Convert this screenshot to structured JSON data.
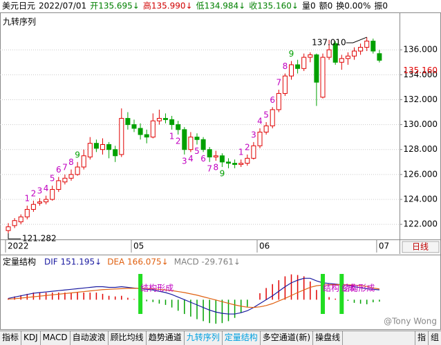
{
  "header": [
    {
      "text": "美元日元",
      "color": "#000000"
    },
    {
      "text": "2022/07/01",
      "color": "#000000"
    },
    {
      "text": "开135.695↓",
      "color": "#008000"
    },
    {
      "text": "高135.990↓",
      "color": "#d00000"
    },
    {
      "text": "低134.984↓",
      "color": "#008000"
    },
    {
      "text": "收135.160↓",
      "color": "#008000"
    },
    {
      "text": "量0",
      "color": "#000000"
    },
    {
      "text": "额0",
      "color": "#000000"
    },
    {
      "text": "换0.00%",
      "color": "#000000"
    },
    {
      "text": "振0",
      "color": "#000000"
    }
  ],
  "chart_data": {
    "type": "candlestick",
    "title": "九转序列",
    "up_color": "#e00000",
    "down_color": "#00a000",
    "count_color": "#c000c0",
    "grid": true,
    "ylim": [
      120.9,
      139.0
    ],
    "yticks": [
      {
        "value": 122,
        "label": "122.000"
      },
      {
        "value": 124,
        "label": "124.000"
      },
      {
        "value": 126,
        "label": "126.000"
      },
      {
        "value": 128,
        "label": "128.000"
      },
      {
        "value": 130,
        "label": "130.000"
      },
      {
        "value": 132,
        "label": "132.000"
      },
      {
        "value": 134,
        "label": "134.000"
      },
      {
        "value": 136,
        "label": "136.000"
      }
    ],
    "last_label": "135.160",
    "high_label": "137.010",
    "low_label": "121.282",
    "period": "日线",
    "x": [
      "2022",
      null,
      null,
      null,
      null,
      null,
      null,
      null,
      null,
      null,
      null,
      null,
      null,
      null,
      null,
      null,
      null,
      null,
      null,
      null,
      "05",
      null,
      null,
      null,
      null,
      null,
      null,
      null,
      null,
      null,
      null,
      null,
      null,
      null,
      null,
      null,
      null,
      null,
      null,
      null,
      "06",
      null,
      null,
      null,
      null,
      null,
      null,
      null,
      null,
      null,
      null,
      null,
      null,
      null,
      null,
      null,
      null,
      null,
      null,
      "07"
    ],
    "candles": [
      {
        "o": 121.5,
        "h": 122.1,
        "l": 121.282,
        "c": 121.8
      },
      {
        "o": 121.9,
        "h": 122.5,
        "l": 121.7,
        "c": 122.3
      },
      {
        "o": 122.2,
        "h": 122.8,
        "l": 122.0,
        "c": 122.6
      },
      {
        "o": 122.6,
        "h": 123.5,
        "l": 122.4,
        "c": 123.2,
        "n": "1",
        "at": "high"
      },
      {
        "o": 123.2,
        "h": 123.9,
        "l": 123.0,
        "c": 123.6,
        "n": "2",
        "at": "high"
      },
      {
        "o": 123.7,
        "h": 124.1,
        "l": 123.5,
        "c": 123.8,
        "n": "3",
        "at": "high"
      },
      {
        "o": 123.8,
        "h": 124.3,
        "l": 123.6,
        "c": 124.0,
        "n": "4",
        "at": "high"
      },
      {
        "o": 124.0,
        "h": 125.1,
        "l": 123.9,
        "c": 124.8,
        "n": "5",
        "at": "high"
      },
      {
        "o": 124.8,
        "h": 125.8,
        "l": 124.6,
        "c": 125.5,
        "n": "6",
        "at": "high"
      },
      {
        "o": 125.4,
        "h": 126.0,
        "l": 125.2,
        "c": 125.7,
        "n": "7",
        "at": "high"
      },
      {
        "o": 125.7,
        "h": 126.4,
        "l": 125.5,
        "c": 126.0,
        "n": "8",
        "at": "high"
      },
      {
        "o": 126.0,
        "h": 127.0,
        "l": 125.9,
        "c": 126.6,
        "n": "9",
        "at": "high",
        "nc": "#00a000"
      },
      {
        "o": 126.6,
        "h": 128.0,
        "l": 126.4,
        "c": 127.5
      },
      {
        "o": 127.4,
        "h": 129.0,
        "l": 127.2,
        "c": 128.5
      },
      {
        "o": 128.5,
        "h": 128.8,
        "l": 127.8,
        "c": 128.1
      },
      {
        "o": 128.0,
        "h": 128.9,
        "l": 127.6,
        "c": 128.4
      },
      {
        "o": 128.4,
        "h": 128.6,
        "l": 127.3,
        "c": 128.0
      },
      {
        "o": 128.0,
        "h": 128.3,
        "l": 127.0,
        "c": 127.5
      },
      {
        "o": 127.6,
        "h": 131.3,
        "l": 127.4,
        "c": 130.5
      },
      {
        "o": 130.5,
        "h": 131.0,
        "l": 129.6,
        "c": 130.0
      },
      {
        "o": 130.0,
        "h": 130.4,
        "l": 129.4,
        "c": 129.7
      },
      {
        "o": 129.7,
        "h": 130.1,
        "l": 128.8,
        "c": 129.2,
        "s": "结构形成"
      },
      {
        "o": 129.2,
        "h": 129.6,
        "l": 128.5,
        "c": 129.0
      },
      {
        "o": 129.0,
        "h": 130.9,
        "l": 128.9,
        "c": 130.3
      },
      {
        "o": 130.3,
        "h": 131.2,
        "l": 130.0,
        "c": 130.5
      },
      {
        "o": 130.5,
        "h": 130.9,
        "l": 130.1,
        "c": 130.4
      },
      {
        "o": 130.4,
        "h": 130.7,
        "l": 129.6,
        "c": 130.0,
        "n": "1",
        "at": "low"
      },
      {
        "o": 130.0,
        "h": 130.3,
        "l": 129.2,
        "c": 129.6,
        "n": "2",
        "at": "low"
      },
      {
        "o": 129.6,
        "h": 129.8,
        "l": 127.6,
        "c": 128.0,
        "n": "3",
        "at": "low"
      },
      {
        "o": 128.0,
        "h": 129.4,
        "l": 127.8,
        "c": 129.0,
        "n": "4",
        "at": "low"
      },
      {
        "o": 129.0,
        "h": 129.3,
        "l": 128.4,
        "c": 128.8,
        "n": "5",
        "at": "low"
      },
      {
        "o": 128.8,
        "h": 129.0,
        "l": 127.8,
        "c": 128.0,
        "n": "6",
        "at": "low"
      },
      {
        "o": 128.0,
        "h": 128.2,
        "l": 127.0,
        "c": 127.4,
        "n": "7",
        "at": "low"
      },
      {
        "o": 127.4,
        "h": 127.9,
        "l": 127.1,
        "c": 127.5,
        "n": "8",
        "at": "low"
      },
      {
        "o": 127.5,
        "h": 127.7,
        "l": 126.6,
        "c": 127.0,
        "n": "9",
        "at": "low",
        "nc": "#00a000"
      },
      {
        "o": 127.0,
        "h": 127.3,
        "l": 126.5,
        "c": 126.9
      },
      {
        "o": 126.9,
        "h": 127.2,
        "l": 126.5,
        "c": 126.8
      },
      {
        "o": 126.8,
        "h": 127.2,
        "l": 126.6,
        "c": 126.9,
        "n": "1",
        "at": "high"
      },
      {
        "o": 126.9,
        "h": 127.6,
        "l": 126.7,
        "c": 127.3,
        "n": "2",
        "at": "high"
      },
      {
        "o": 127.3,
        "h": 128.6,
        "l": 127.2,
        "c": 128.3,
        "n": "3",
        "at": "high"
      },
      {
        "o": 128.3,
        "h": 129.7,
        "l": 128.1,
        "c": 129.4,
        "n": "4",
        "at": "high"
      },
      {
        "o": 129.4,
        "h": 130.2,
        "l": 129.2,
        "c": 129.9,
        "n": "5",
        "at": "high"
      },
      {
        "o": 129.9,
        "h": 131.4,
        "l": 129.7,
        "c": 131.2,
        "n": "6",
        "at": "high"
      },
      {
        "o": 131.2,
        "h": 132.8,
        "l": 131.0,
        "c": 132.5,
        "n": "7",
        "at": "high"
      },
      {
        "o": 132.5,
        "h": 134.1,
        "l": 132.3,
        "c": 133.9,
        "n": "8",
        "at": "high"
      },
      {
        "o": 133.9,
        "h": 135.1,
        "l": 133.6,
        "c": 134.8,
        "n": "9",
        "at": "high",
        "nc": "#00a000"
      },
      {
        "o": 134.8,
        "h": 135.2,
        "l": 134.1,
        "c": 134.5
      },
      {
        "o": 134.5,
        "h": 135.7,
        "l": 134.3,
        "c": 135.4
      },
      {
        "o": 135.4,
        "h": 135.8,
        "l": 135.0,
        "c": 135.6
      },
      {
        "o": 135.6,
        "h": 135.7,
        "l": 131.5,
        "c": 133.4
      },
      {
        "o": 132.2,
        "h": 135.7,
        "l": 132.1,
        "c": 135.4,
        "s": "结构形成"
      },
      {
        "o": 135.4,
        "h": 136.8,
        "l": 135.2,
        "c": 136.0
      },
      {
        "o": 136.5,
        "h": 136.7,
        "l": 134.8,
        "c": 135.0
      },
      {
        "o": 135.0,
        "h": 135.6,
        "l": 134.4,
        "c": 135.3,
        "s": "结构形成"
      },
      {
        "o": 135.3,
        "h": 135.8,
        "l": 134.8,
        "c": 135.5
      },
      {
        "o": 135.5,
        "h": 136.2,
        "l": 135.2,
        "c": 135.9
      },
      {
        "o": 135.9,
        "h": 136.5,
        "l": 135.6,
        "c": 136.2
      },
      {
        "o": 136.2,
        "h": 137.01,
        "l": 135.9,
        "c": 136.7
      },
      {
        "o": 136.7,
        "h": 136.9,
        "l": 135.7,
        "c": 135.9
      },
      {
        "o": 135.695,
        "h": 135.99,
        "l": 134.984,
        "c": 135.16
      }
    ]
  },
  "indicator": {
    "title": "定量结构",
    "mlim": [
      -400,
      450
    ],
    "series": [
      {
        "name": "DIF 151.195↓",
        "color": "#1a1aa0",
        "values": [
          20,
          40,
          60,
          80,
          100,
          110,
          120,
          130,
          140,
          150,
          160,
          170,
          180,
          190,
          200,
          200,
          190,
          190,
          200,
          190,
          180,
          170,
          160,
          150,
          130,
          110,
          80,
          40,
          0,
          -40,
          -80,
          -120,
          -160,
          -190,
          -210,
          -220,
          -220,
          -200,
          -170,
          -120,
          -60,
          0,
          60,
          130,
          200,
          260,
          300,
          330,
          330,
          290,
          260,
          250,
          240,
          230,
          220,
          200,
          185,
          170,
          160,
          151.195
        ]
      },
      {
        "name": "DEA 166.075↓",
        "color": "#e06010",
        "values": [
          10,
          15,
          25,
          35,
          45,
          55,
          65,
          75,
          85,
          95,
          105,
          115,
          125,
          135,
          145,
          155,
          160,
          165,
          170,
          175,
          175,
          175,
          172,
          168,
          160,
          150,
          140,
          125,
          110,
          90,
          70,
          45,
          20,
          -5,
          -30,
          -55,
          -80,
          -100,
          -115,
          -120,
          -110,
          -90,
          -60,
          -20,
          20,
          65,
          110,
          150,
          190,
          215,
          225,
          230,
          232,
          231,
          229,
          224,
          216,
          205,
          180,
          166.075
        ]
      }
    ],
    "macd_name": "MACD -29.761↓",
    "macd_color": "#808080",
    "pos_color": "#e00000",
    "neg_color": "#00a000",
    "macd": [
      20,
      50,
      70,
      90,
      110,
      110,
      110,
      110,
      110,
      110,
      110,
      110,
      110,
      110,
      110,
      90,
      60,
      50,
      60,
      30,
      10,
      -10,
      -24,
      -36,
      -60,
      -80,
      -120,
      -170,
      -220,
      -260,
      -300,
      -330,
      -360,
      -370,
      -360,
      -330,
      -280,
      -200,
      -110,
      0,
      100,
      180,
      240,
      300,
      360,
      390,
      380,
      360,
      280,
      150,
      70,
      40,
      16,
      -2,
      -18,
      -48,
      -62,
      -70,
      -40,
      -29.761
    ]
  },
  "tabs": [
    "指标",
    "KDJ",
    "MACD",
    "自动波浪",
    "顾比均线",
    "趋势通道",
    "九转序列",
    "定量结构",
    "多空通道(新)",
    "操盘线"
  ],
  "active_tabs": [
    "九转序列",
    "定量结构"
  ],
  "side_tabs": [
    "指",
    "组"
  ],
  "watermark": "@Tony Wong"
}
